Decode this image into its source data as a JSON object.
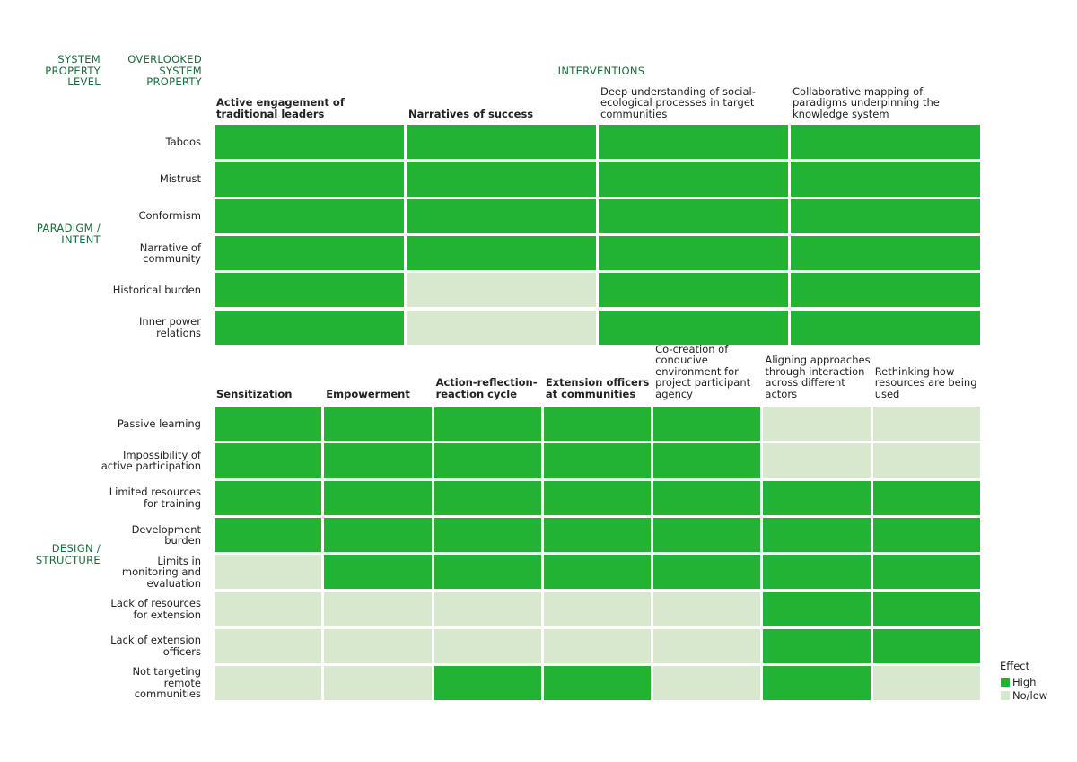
{
  "headers": {
    "level": "SYSTEM PROPERTY LEVEL",
    "overlooked": "OVERLOOKED SYSTEM PROPERTY",
    "interventions": "INTERVENTIONS"
  },
  "colors": {
    "high": "#22b234",
    "low": "#d7e8ce",
    "accent": "#1a6b3a"
  },
  "legend": {
    "title": "Effect",
    "high": "High",
    "low": "No/low"
  },
  "chart_data": [
    {
      "type": "heatmap",
      "level": "PARADIGM / INTENT",
      "columns": [
        {
          "label": "Active engagement of traditional leaders",
          "bold": true
        },
        {
          "label": "Narratives of success",
          "bold": true
        },
        {
          "label": "Deep understanding of social-ecological processes in target communities",
          "bold": false
        },
        {
          "label": "Collaborative mapping of paradigms underpinning the knowledge system",
          "bold": false
        }
      ],
      "rows": [
        "Taboos",
        "Mistrust",
        "Conformism",
        "Narrative of community",
        "Historical burden",
        "Inner power relations"
      ],
      "values": [
        [
          "High",
          "High",
          "High",
          "High"
        ],
        [
          "High",
          "High",
          "High",
          "High"
        ],
        [
          "High",
          "High",
          "High",
          "High"
        ],
        [
          "High",
          "High",
          "High",
          "High"
        ],
        [
          "High",
          "No/low",
          "High",
          "High"
        ],
        [
          "High",
          "No/low",
          "High",
          "High"
        ]
      ]
    },
    {
      "type": "heatmap",
      "level": "DESIGN / STRUCTURE",
      "columns": [
        {
          "label": "Sensitization",
          "bold": true
        },
        {
          "label": "Empowerment",
          "bold": true
        },
        {
          "label": "Action-reflection-reaction cycle",
          "bold": true
        },
        {
          "label": "Extension officers at communities",
          "bold": true
        },
        {
          "label": "Co-creation of conducive environment for project participant agency",
          "bold": false
        },
        {
          "label": "Aligning approaches through interaction across different actors",
          "bold": false
        },
        {
          "label": "Rethinking how resources are being used",
          "bold": false
        }
      ],
      "rows": [
        "Passive learning",
        "Impossibility of active participation",
        "Limited resources for training",
        "Development burden",
        "Limits in monitoring and evaluation",
        "Lack of resources for extension",
        "Lack of extension officers",
        "Not targeting remote communities"
      ],
      "values": [
        [
          "High",
          "High",
          "High",
          "High",
          "High",
          "No/low",
          "No/low"
        ],
        [
          "High",
          "High",
          "High",
          "High",
          "High",
          "No/low",
          "No/low"
        ],
        [
          "High",
          "High",
          "High",
          "High",
          "High",
          "High",
          "High"
        ],
        [
          "High",
          "High",
          "High",
          "High",
          "High",
          "High",
          "High"
        ],
        [
          "No/low",
          "High",
          "High",
          "High",
          "High",
          "High",
          "High"
        ],
        [
          "No/low",
          "No/low",
          "No/low",
          "No/low",
          "No/low",
          "High",
          "High"
        ],
        [
          "No/low",
          "No/low",
          "No/low",
          "No/low",
          "No/low",
          "High",
          "High"
        ],
        [
          "No/low",
          "No/low",
          "High",
          "High",
          "No/low",
          "High",
          "No/low"
        ]
      ]
    }
  ]
}
